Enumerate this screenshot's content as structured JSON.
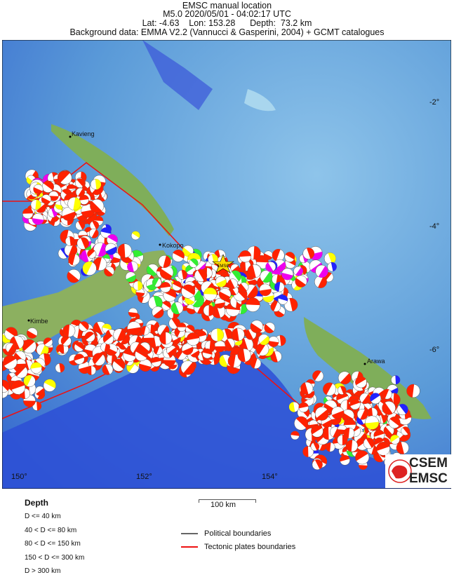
{
  "header": {
    "title": "EMSC manual location",
    "event_line": "M5.0  2020/05/01 - 04:02:17 UTC",
    "location_line": "Lat: -4.63    Lon: 153.28      Depth:  73.2 km",
    "background_line": "Background data: EMMA V2.2 (Vannucci & Gasperini, 2004) + GCMT catalogues"
  },
  "map": {
    "lat_ticks": [
      "-2°",
      "-4°",
      "-6°"
    ],
    "lon_ticks": [
      "150°",
      "152°",
      "154°"
    ],
    "places": [
      "Kavieng",
      "Kokopo",
      "Kimbe",
      "Arawa"
    ],
    "epicenter_label": "EMSC",
    "epicenter_icon": "star-icon",
    "epicenter_color": "#ffdd00"
  },
  "legend": {
    "depth_title": "Depth",
    "depth_classes": [
      {
        "label": "D <= 40 km",
        "color": "#ff2200"
      },
      {
        "label": "40 < D <= 80 km",
        "color": "#ffff00"
      },
      {
        "label": "80 < D <= 150 km",
        "color": "#33ee33"
      },
      {
        "label": "150 < D <= 300 km",
        "color": "#2222ff"
      },
      {
        "label": "D > 300 km",
        "color": "#ee00ee"
      }
    ],
    "scale_label": "100 km",
    "political_label": "Political boundaries",
    "political_color": "#666666",
    "tectonic_label": "Tectonic plates boundaries",
    "tectonic_color": "#ee1111"
  },
  "logo": {
    "line1": "CSEM",
    "line2": "EMSC",
    "color": "#dd2222"
  }
}
